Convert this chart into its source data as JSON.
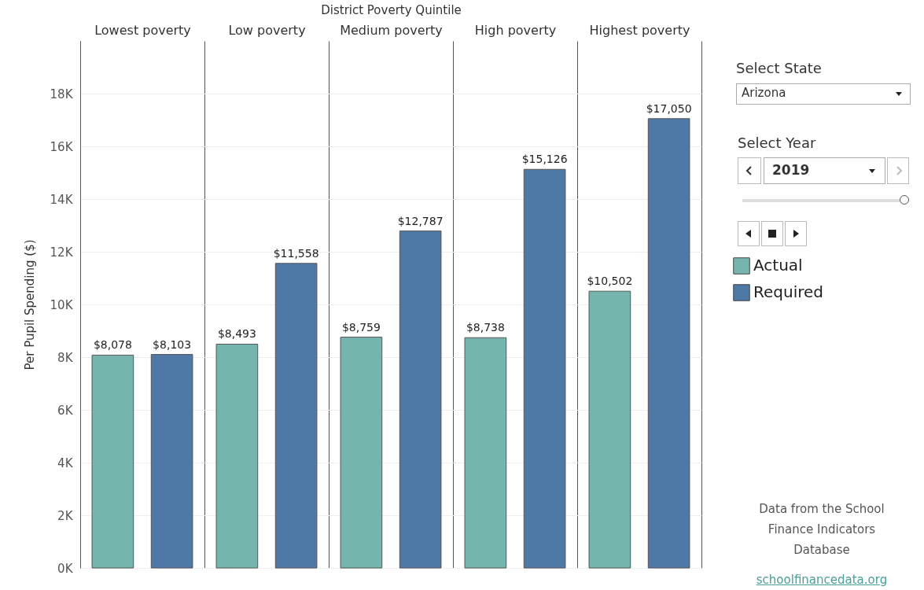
{
  "chart_data": {
    "type": "bar",
    "xlabel": "District Poverty Quintile",
    "ylabel": "Per Pupil Spending ($)",
    "categories": [
      "Lowest poverty",
      "Low poverty",
      "Medium poverty",
      "High poverty",
      "Highest poverty"
    ],
    "series": [
      {
        "name": "Actual",
        "color": "#76b5ae",
        "values": [
          8078,
          8493,
          8759,
          8738,
          10502
        ],
        "value_labels": [
          "$8,078",
          "$8,493",
          "$8,759",
          "$8,738",
          "$10,502"
        ]
      },
      {
        "name": "Required",
        "color": "#4e79a7",
        "values": [
          8103,
          11558,
          12787,
          15126,
          17050
        ],
        "value_labels": [
          "$8,103",
          "$11,558",
          "$12,787",
          "$15,126",
          "$17,050"
        ]
      }
    ],
    "ylim": [
      0,
      20000
    ],
    "yticks": [
      {
        "value": 0,
        "label": "0K"
      },
      {
        "value": 2000,
        "label": "2K"
      },
      {
        "value": 4000,
        "label": "4K"
      },
      {
        "value": 6000,
        "label": "6K"
      },
      {
        "value": 8000,
        "label": "8K"
      },
      {
        "value": 10000,
        "label": "10K"
      },
      {
        "value": 12000,
        "label": "12K"
      },
      {
        "value": 14000,
        "label": "14K"
      },
      {
        "value": 16000,
        "label": "16K"
      },
      {
        "value": 18000,
        "label": "18K"
      }
    ],
    "grid": true,
    "legend": "right",
    "annotations": [
      "Select State",
      "Arizona",
      "Select Year",
      "2019",
      "Data from the School Finance Indicators Database",
      "schoolfinancedata.org"
    ]
  }
}
